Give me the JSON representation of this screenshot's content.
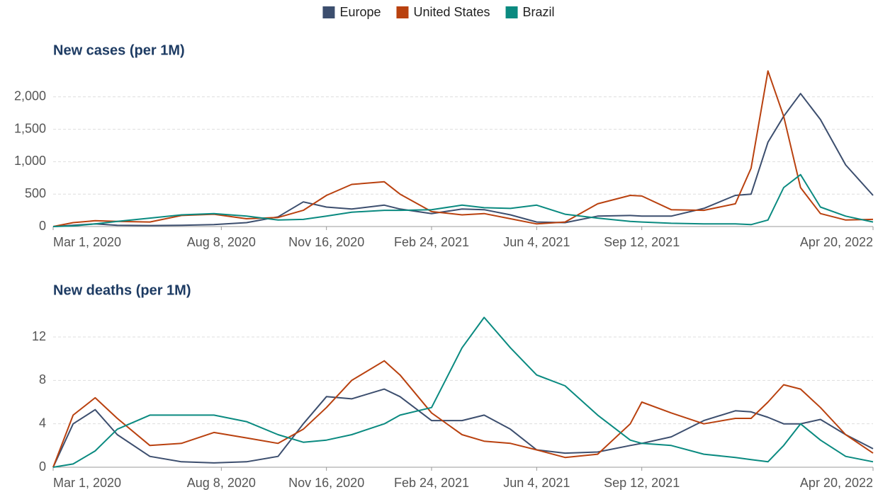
{
  "chart_data": [
    {
      "type": "line",
      "title": "New cases (per 1M)",
      "x": [
        "2020-03-01",
        "2020-03-20",
        "2020-04-10",
        "2020-05-01",
        "2020-06-01",
        "2020-07-01",
        "2020-08-01",
        "2020-09-01",
        "2020-10-01",
        "2020-10-25",
        "2020-11-16",
        "2020-12-10",
        "2021-01-10",
        "2021-01-25",
        "2021-02-24",
        "2021-03-25",
        "2021-04-15",
        "2021-05-10",
        "2021-06-04",
        "2021-07-01",
        "2021-08-01",
        "2021-09-01",
        "2021-09-12",
        "2021-10-10",
        "2021-11-10",
        "2021-12-10",
        "2021-12-25",
        "2022-01-10",
        "2022-01-25",
        "2022-02-10",
        "2022-03-01",
        "2022-03-25",
        "2022-04-20"
      ],
      "series": [
        {
          "name": "Europe",
          "color": "#3c4e6e",
          "values": [
            0,
            20,
            40,
            20,
            15,
            20,
            30,
            60,
            150,
            380,
            300,
            270,
            330,
            270,
            200,
            270,
            260,
            180,
            70,
            60,
            160,
            170,
            160,
            160,
            280,
            480,
            500,
            1300,
            1700,
            2050,
            1650,
            950,
            480
          ]
        },
        {
          "name": "United States",
          "color": "#b9410f",
          "values": [
            0,
            60,
            90,
            80,
            70,
            170,
            190,
            120,
            140,
            250,
            480,
            650,
            690,
            500,
            230,
            180,
            200,
            120,
            40,
            70,
            350,
            480,
            470,
            260,
            250,
            350,
            900,
            2400,
            1700,
            600,
            200,
            100,
            110
          ]
        },
        {
          "name": "Brazil",
          "color": "#0a8a80",
          "values": [
            0,
            10,
            40,
            80,
            130,
            180,
            200,
            160,
            100,
            110,
            160,
            220,
            250,
            250,
            260,
            330,
            290,
            280,
            330,
            190,
            130,
            80,
            70,
            50,
            40,
            40,
            30,
            100,
            600,
            800,
            300,
            160,
            70
          ]
        }
      ],
      "xlim": [
        "2020-03-01",
        "2022-04-20"
      ],
      "xticks": [
        {
          "value": "2020-03-01",
          "label": "Mar 1, 2020"
        },
        {
          "value": "2020-08-08",
          "label": "Aug 8, 2020"
        },
        {
          "value": "2020-11-16",
          "label": "Nov 16, 2020"
        },
        {
          "value": "2021-02-24",
          "label": "Feb 24, 2021"
        },
        {
          "value": "2021-06-04",
          "label": "Jun 4, 2021"
        },
        {
          "value": "2021-09-12",
          "label": "Sep 12, 2021"
        },
        {
          "value": "2022-04-20",
          "label": "Apr 20, 2022"
        }
      ],
      "ylim": [
        0,
        2500
      ],
      "yticks": [
        0,
        500,
        {
          "value": 1000,
          "label": "1,000"
        },
        {
          "value": 1500,
          "label": "1,500"
        },
        {
          "value": 2000,
          "label": "2,000"
        }
      ],
      "grid": true
    },
    {
      "type": "line",
      "title": "New deaths (per 1M)",
      "x": [
        "2020-03-01",
        "2020-03-20",
        "2020-04-10",
        "2020-05-01",
        "2020-06-01",
        "2020-07-01",
        "2020-08-01",
        "2020-09-01",
        "2020-10-01",
        "2020-10-25",
        "2020-11-16",
        "2020-12-10",
        "2021-01-10",
        "2021-01-25",
        "2021-02-24",
        "2021-03-25",
        "2021-04-15",
        "2021-05-10",
        "2021-06-04",
        "2021-07-01",
        "2021-08-01",
        "2021-09-01",
        "2021-09-12",
        "2021-10-10",
        "2021-11-10",
        "2021-12-10",
        "2021-12-25",
        "2022-01-10",
        "2022-01-25",
        "2022-02-10",
        "2022-03-01",
        "2022-03-25",
        "2022-04-20"
      ],
      "series": [
        {
          "color": "#3c4e6e",
          "values": [
            0,
            4.0,
            5.3,
            3.0,
            1.0,
            0.5,
            0.4,
            0.5,
            1.0,
            4.0,
            6.5,
            6.3,
            7.2,
            6.5,
            4.3,
            4.3,
            4.8,
            3.5,
            1.6,
            1.3,
            1.4,
            2.0,
            2.2,
            2.8,
            4.3,
            5.2,
            5.1,
            4.6,
            4.0,
            4.0,
            4.4,
            3.0,
            1.7
          ]
        },
        {
          "color": "#b9410f",
          "values": [
            0,
            4.8,
            6.4,
            4.5,
            2.0,
            2.2,
            3.2,
            2.7,
            2.2,
            3.5,
            5.5,
            8.0,
            9.8,
            8.5,
            5.0,
            3.0,
            2.4,
            2.2,
            1.6,
            0.9,
            1.2,
            4.0,
            6.0,
            5.0,
            4.0,
            4.5,
            4.5,
            6.0,
            7.6,
            7.2,
            5.5,
            3.0,
            1.3
          ]
        },
        {
          "color": "#0a8a80",
          "values": [
            0,
            0.3,
            1.5,
            3.5,
            4.8,
            4.8,
            4.8,
            4.2,
            3.0,
            2.3,
            2.5,
            3.0,
            4.0,
            4.8,
            5.5,
            11.0,
            13.8,
            11.0,
            8.5,
            7.5,
            4.8,
            2.5,
            2.2,
            2.0,
            1.2,
            0.9,
            0.7,
            0.5,
            2.0,
            4.0,
            2.5,
            1.0,
            0.5
          ]
        }
      ],
      "xlim": [
        "2020-03-01",
        "2022-04-20"
      ],
      "xticks": [
        {
          "value": "2020-03-01",
          "label": "Mar 1, 2020"
        },
        {
          "value": "2020-08-08",
          "label": "Aug 8, 2020"
        },
        {
          "value": "2020-11-16",
          "label": "Nov 16, 2020"
        },
        {
          "value": "2021-02-24",
          "label": "Feb 24, 2021"
        },
        {
          "value": "2021-06-04",
          "label": "Jun 4, 2021"
        },
        {
          "value": "2021-09-12",
          "label": "Sep 12, 2021"
        },
        {
          "value": "2022-04-20",
          "label": "Apr 20, 2022"
        }
      ],
      "ylim": [
        0,
        15
      ],
      "yticks": [
        0,
        4,
        8,
        12
      ],
      "grid": true
    }
  ]
}
